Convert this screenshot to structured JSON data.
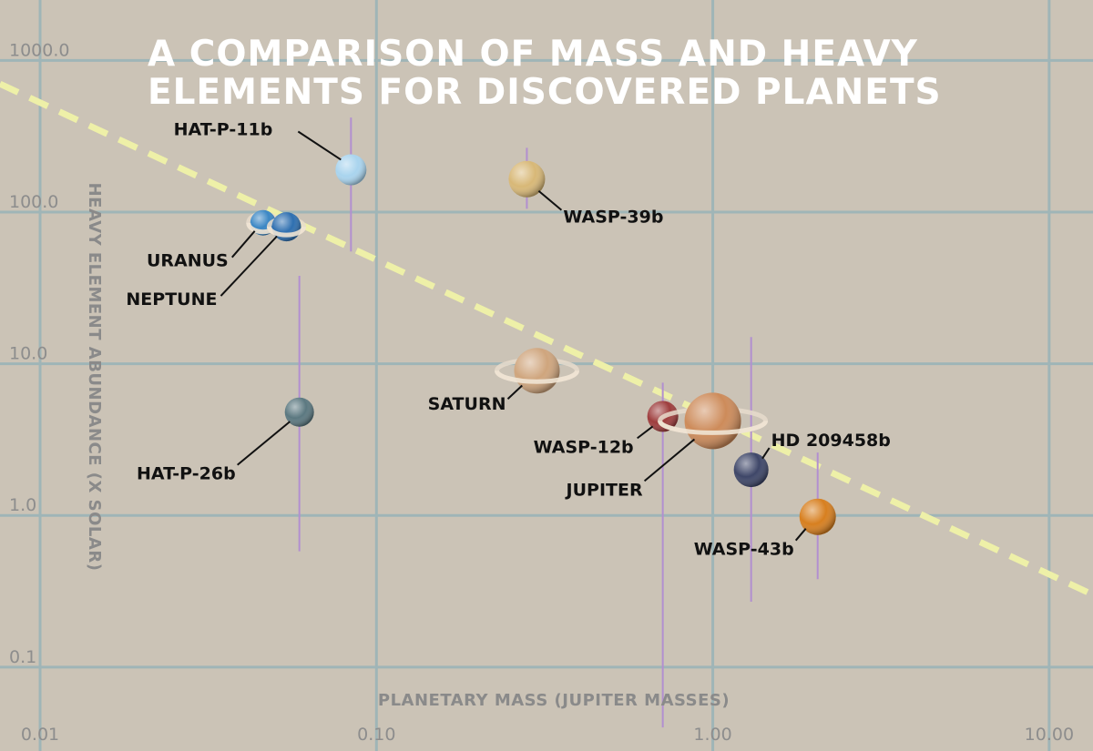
{
  "chart_data": {
    "type": "scatter",
    "title_lines": [
      "A COMPARISON OF MASS AND HEAVY",
      "ELEMENTS FOR DISCOVERED PLANETS"
    ],
    "xlabel": "PLANETARY MASS (JUPITER MASSES)",
    "ylabel": "HEAVY ELEMENT ABUNDANCE (X SOLAR)",
    "xscale": "log",
    "yscale": "log",
    "xlim": [
      0.0076,
      13.5
    ],
    "ylim": [
      0.028,
      2500
    ],
    "grid": true,
    "x_ticks": [
      {
        "value": 0.01,
        "label": "0.01"
      },
      {
        "value": 0.1,
        "label": "0.10"
      },
      {
        "value": 1,
        "label": "1.00"
      },
      {
        "value": 10,
        "label": "10.00"
      }
    ],
    "y_ticks": [
      {
        "value": 0.1,
        "label": "0.1"
      },
      {
        "value": 1,
        "label": "1.0"
      },
      {
        "value": 10,
        "label": "10.0"
      },
      {
        "value": 100,
        "label": "100.0"
      },
      {
        "value": 1000,
        "label": "1000.0"
      }
    ],
    "trend_line": {
      "points": [
        [
          0.0076,
          700
        ],
        [
          13.5,
          0.3
        ]
      ]
    },
    "points": [
      {
        "name": "HAT-P-11b",
        "x": 0.084,
        "y": 190,
        "err": [
          55,
          420
        ],
        "color": "#a9d4ee"
      },
      {
        "name": "WASP-39b",
        "x": 0.28,
        "y": 165,
        "err": [
          105,
          265
        ],
        "color": "#d8b877"
      },
      {
        "name": "URANUS",
        "x": 0.046,
        "y": 85,
        "err": null,
        "color": "#3a86c4"
      },
      {
        "name": "NEPTUNE",
        "x": 0.054,
        "y": 80,
        "err": null,
        "color": "#2e6fb0"
      },
      {
        "name": "SATURN",
        "x": 0.3,
        "y": 9,
        "err": null,
        "color": "#cfa57d"
      },
      {
        "name": "HAT-P-26b",
        "x": 0.059,
        "y": 4.8,
        "err": [
          0.58,
          38
        ],
        "color": "#5b7880"
      },
      {
        "name": "WASP-12b",
        "x": 0.71,
        "y": 4.5,
        "err": [
          0.04,
          7.5
        ],
        "color": "#9e3d3d"
      },
      {
        "name": "JUPITER",
        "x": 1.0,
        "y": 4.2,
        "err": null,
        "color": "#cd8b5a"
      },
      {
        "name": "HD 209458b",
        "x": 1.3,
        "y": 2.0,
        "err": [
          0.27,
          15
        ],
        "color": "#3e4668"
      },
      {
        "name": "WASP-43b",
        "x": 2.05,
        "y": 0.98,
        "err": [
          0.38,
          2.6
        ],
        "color": "#d77f1f"
      }
    ]
  }
}
